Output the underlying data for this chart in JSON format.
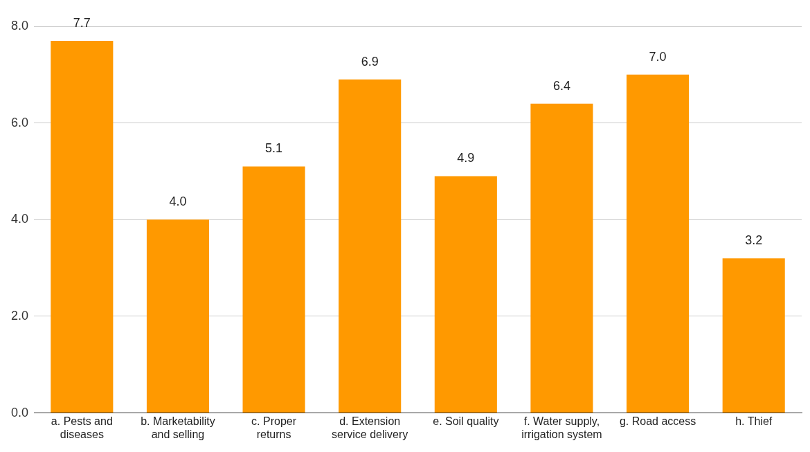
{
  "chart_data": {
    "type": "bar",
    "categories": [
      "a. Pests and diseases",
      "b. Marketability and selling",
      "c. Proper returns",
      "d. Extension service delivery",
      "e. Soil quality",
      "f. Water supply, irrigation system",
      "g. Road access",
      "h. Thief"
    ],
    "values": [
      7.7,
      4.0,
      5.1,
      6.9,
      4.9,
      6.4,
      7.0,
      3.2
    ],
    "value_labels": [
      "7.7",
      "4.0",
      "5.1",
      "6.9",
      "4.9",
      "6.4",
      "7.0",
      "3.2"
    ],
    "color": "#ff9900",
    "ylim": [
      0,
      8
    ],
    "yticks": [
      {
        "value": 0,
        "label": "0.0"
      },
      {
        "value": 2,
        "label": "2.0"
      },
      {
        "value": 4,
        "label": "4.0"
      },
      {
        "value": 6,
        "label": "6.0"
      },
      {
        "value": 8,
        "label": "8.0"
      }
    ],
    "grid": "y"
  }
}
